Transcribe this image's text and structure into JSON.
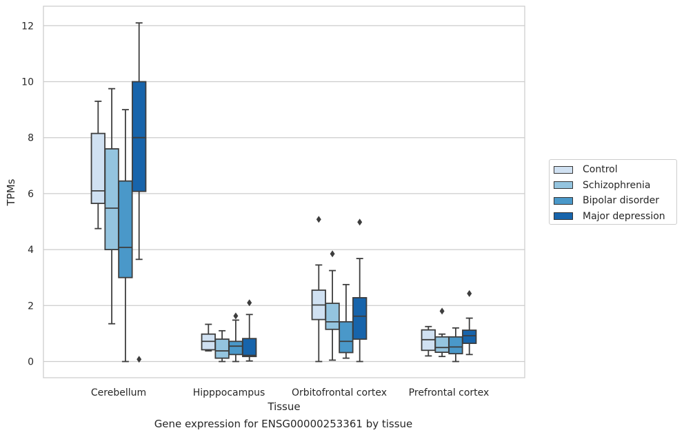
{
  "chart_data": {
    "type": "box",
    "title": "",
    "caption": "Gene expression for ENSG00000253361 by tissue",
    "xlabel": "Tissue",
    "ylabel": "TPMs",
    "ylim": [
      -0.6,
      12.7
    ],
    "yticks": [
      0,
      2,
      4,
      6,
      8,
      10,
      12
    ],
    "grid": "horizontal",
    "legend_position": "right",
    "categories": [
      "Cerebellum",
      "Hipppocampus",
      "Orbitofrontal cortex",
      "Prefrontal cortex"
    ],
    "series": [
      {
        "name": "Control",
        "color": "#d0e1f2",
        "boxes": [
          {
            "whislo": 4.75,
            "q1": 5.65,
            "med": 6.1,
            "q3": 8.15,
            "whishi": 9.3,
            "fliers": []
          },
          {
            "whislo": 0.38,
            "q1": 0.42,
            "med": 0.72,
            "q3": 0.98,
            "whishi": 1.33,
            "fliers": []
          },
          {
            "whislo": 0.0,
            "q1": 1.5,
            "med": 2.02,
            "q3": 2.55,
            "whishi": 3.45,
            "fliers": [
              5.08
            ]
          },
          {
            "whislo": 0.2,
            "q1": 0.4,
            "med": 0.78,
            "q3": 1.13,
            "whishi": 1.25,
            "fliers": []
          }
        ]
      },
      {
        "name": "Schizophrenia",
        "color": "#94c4df",
        "boxes": [
          {
            "whislo": 1.35,
            "q1": 4.0,
            "med": 5.48,
            "q3": 7.6,
            "whishi": 9.75,
            "fliers": []
          },
          {
            "whislo": 0.0,
            "q1": 0.12,
            "med": 0.38,
            "q3": 0.8,
            "whishi": 1.1,
            "fliers": []
          },
          {
            "whislo": 0.05,
            "q1": 1.15,
            "med": 1.42,
            "q3": 2.08,
            "whishi": 3.25,
            "fliers": [
              3.85
            ]
          },
          {
            "whislo": 0.18,
            "q1": 0.33,
            "med": 0.5,
            "q3": 0.88,
            "whishi": 0.98,
            "fliers": [
              1.8
            ]
          }
        ]
      },
      {
        "name": "Bipolar disorder",
        "color": "#4a98c9",
        "boxes": [
          {
            "whislo": 0.0,
            "q1": 3.0,
            "med": 4.08,
            "q3": 6.45,
            "whishi": 9.0,
            "fliers": []
          },
          {
            "whislo": 0.0,
            "q1": 0.25,
            "med": 0.55,
            "q3": 0.72,
            "whishi": 1.48,
            "fliers": [
              1.63
            ]
          },
          {
            "whislo": 0.12,
            "q1": 0.32,
            "med": 0.72,
            "q3": 1.42,
            "whishi": 2.75,
            "fliers": []
          },
          {
            "whislo": 0.0,
            "q1": 0.28,
            "med": 0.52,
            "q3": 0.88,
            "whishi": 1.2,
            "fliers": []
          }
        ]
      },
      {
        "name": "Major depression",
        "color": "#1764ab",
        "boxes": [
          {
            "whislo": 3.65,
            "q1": 6.08,
            "med": 8.0,
            "q3": 10.0,
            "whishi": 12.1,
            "fliers": [
              0.08
            ]
          },
          {
            "whislo": 0.02,
            "q1": 0.18,
            "med": 0.22,
            "q3": 0.82,
            "whishi": 1.68,
            "fliers": [
              2.1
            ]
          },
          {
            "whislo": 0.0,
            "q1": 0.8,
            "med": 1.62,
            "q3": 2.28,
            "whishi": 3.68,
            "fliers": [
              4.98
            ]
          },
          {
            "whislo": 0.25,
            "q1": 0.65,
            "med": 0.92,
            "q3": 1.12,
            "whishi": 1.55,
            "fliers": [
              2.43
            ]
          }
        ]
      }
    ]
  },
  "legend": {
    "items": [
      {
        "label": "Control",
        "color": "#d0e1f2"
      },
      {
        "label": "Schizophrenia",
        "color": "#94c4df"
      },
      {
        "label": "Bipolar disorder",
        "color": "#4a98c9"
      },
      {
        "label": "Major depression",
        "color": "#1764ab"
      }
    ]
  }
}
